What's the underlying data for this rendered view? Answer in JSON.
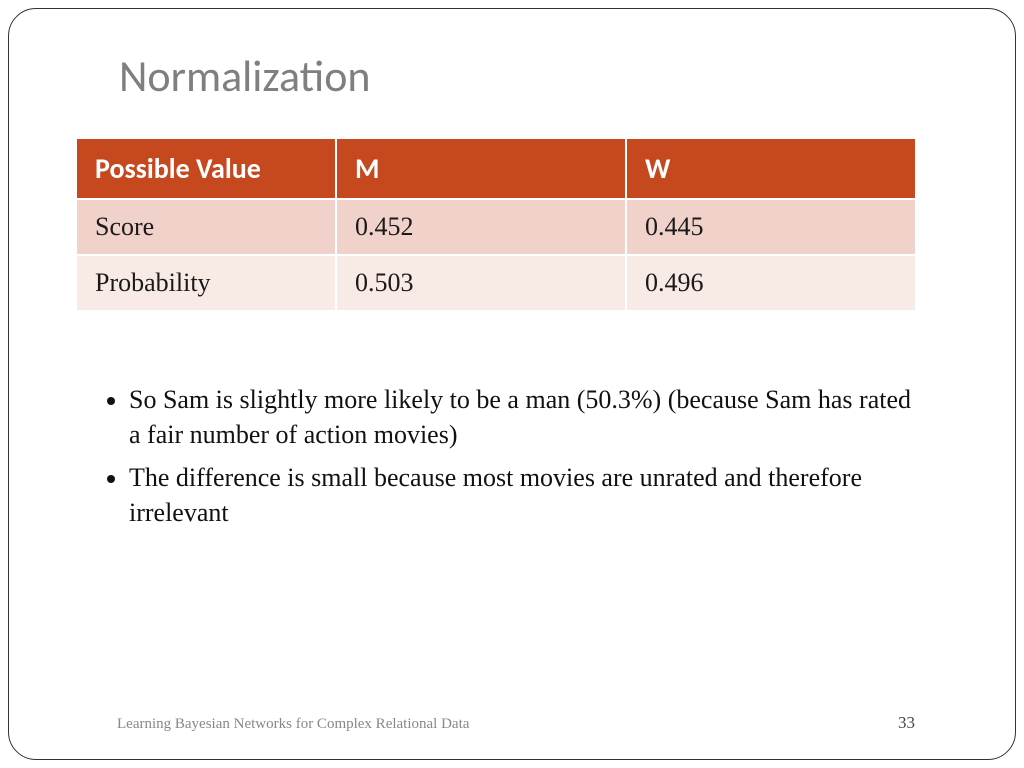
{
  "title": "Normalization",
  "table": {
    "header_bg": "#c5481f",
    "header_fg": "#ffffff",
    "row_bg_alt1": "#f0d2cb",
    "row_bg_alt2": "#f8eae5",
    "columns": [
      "Possible Value",
      "M",
      "W"
    ],
    "rows": [
      [
        "Score",
        "0.452",
        "0.445"
      ],
      [
        "Probability",
        "0.503",
        "0.496"
      ]
    ]
  },
  "bullets": [
    "So Sam is slightly more likely to be a man  (50.3%) (because Sam has rated a fair number of action  movies)",
    "The difference is small because most movies are unrated and therefore irrelevant"
  ],
  "footer": "Learning Bayesian Networks for Complex Relational Data",
  "page_number": "33"
}
